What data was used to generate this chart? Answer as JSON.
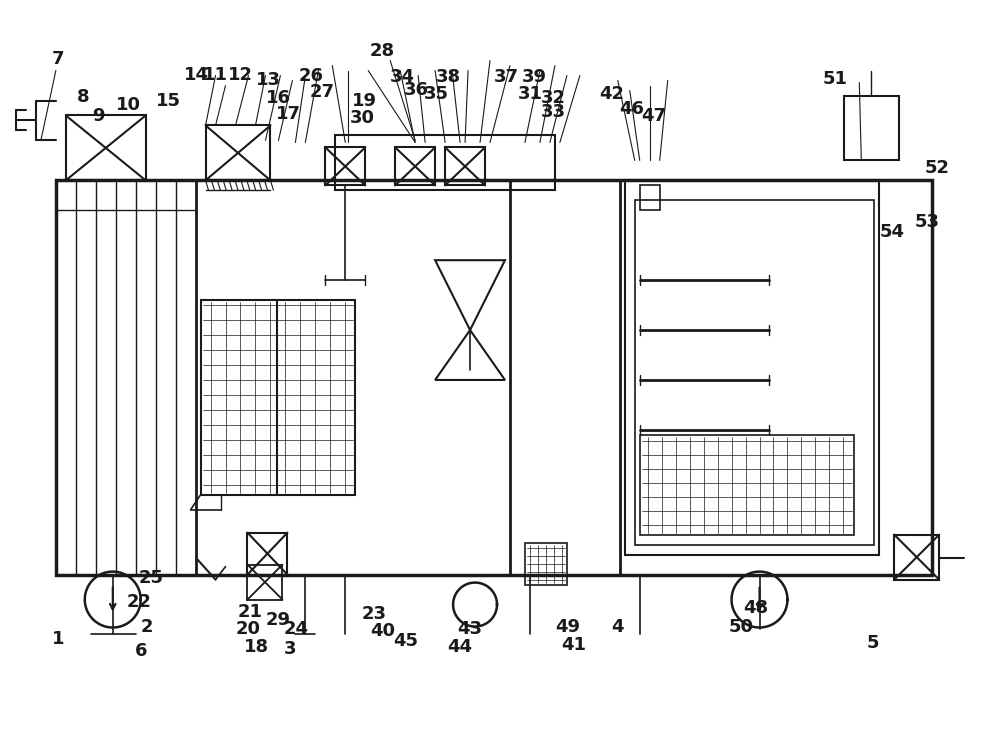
{
  "bg_color": "#ffffff",
  "line_color": "#1a1a1a",
  "fig_width": 10.0,
  "fig_height": 7.3,
  "dpi": 100
}
